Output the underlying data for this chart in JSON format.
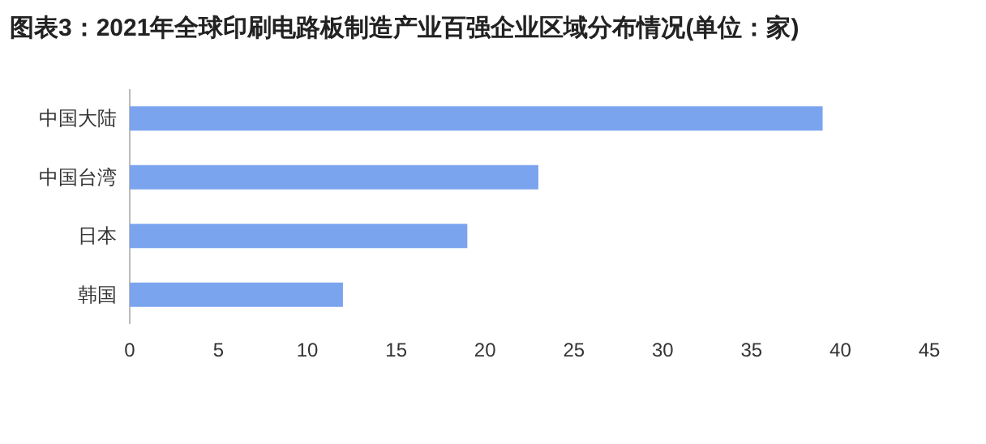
{
  "chart_data": {
    "type": "bar",
    "orientation": "horizontal",
    "title": "图表3：2021年全球印刷电路板制造产业百强企业区域分布情况(单位：家)",
    "categories": [
      "中国大陆",
      "中国台湾",
      "日本",
      "韩国"
    ],
    "values": [
      39,
      23,
      19,
      12
    ],
    "color": "#7ba4ef",
    "xlim": [
      0,
      45
    ],
    "xticks": [
      0,
      5,
      10,
      15,
      20,
      25,
      30,
      35,
      40,
      45
    ]
  }
}
